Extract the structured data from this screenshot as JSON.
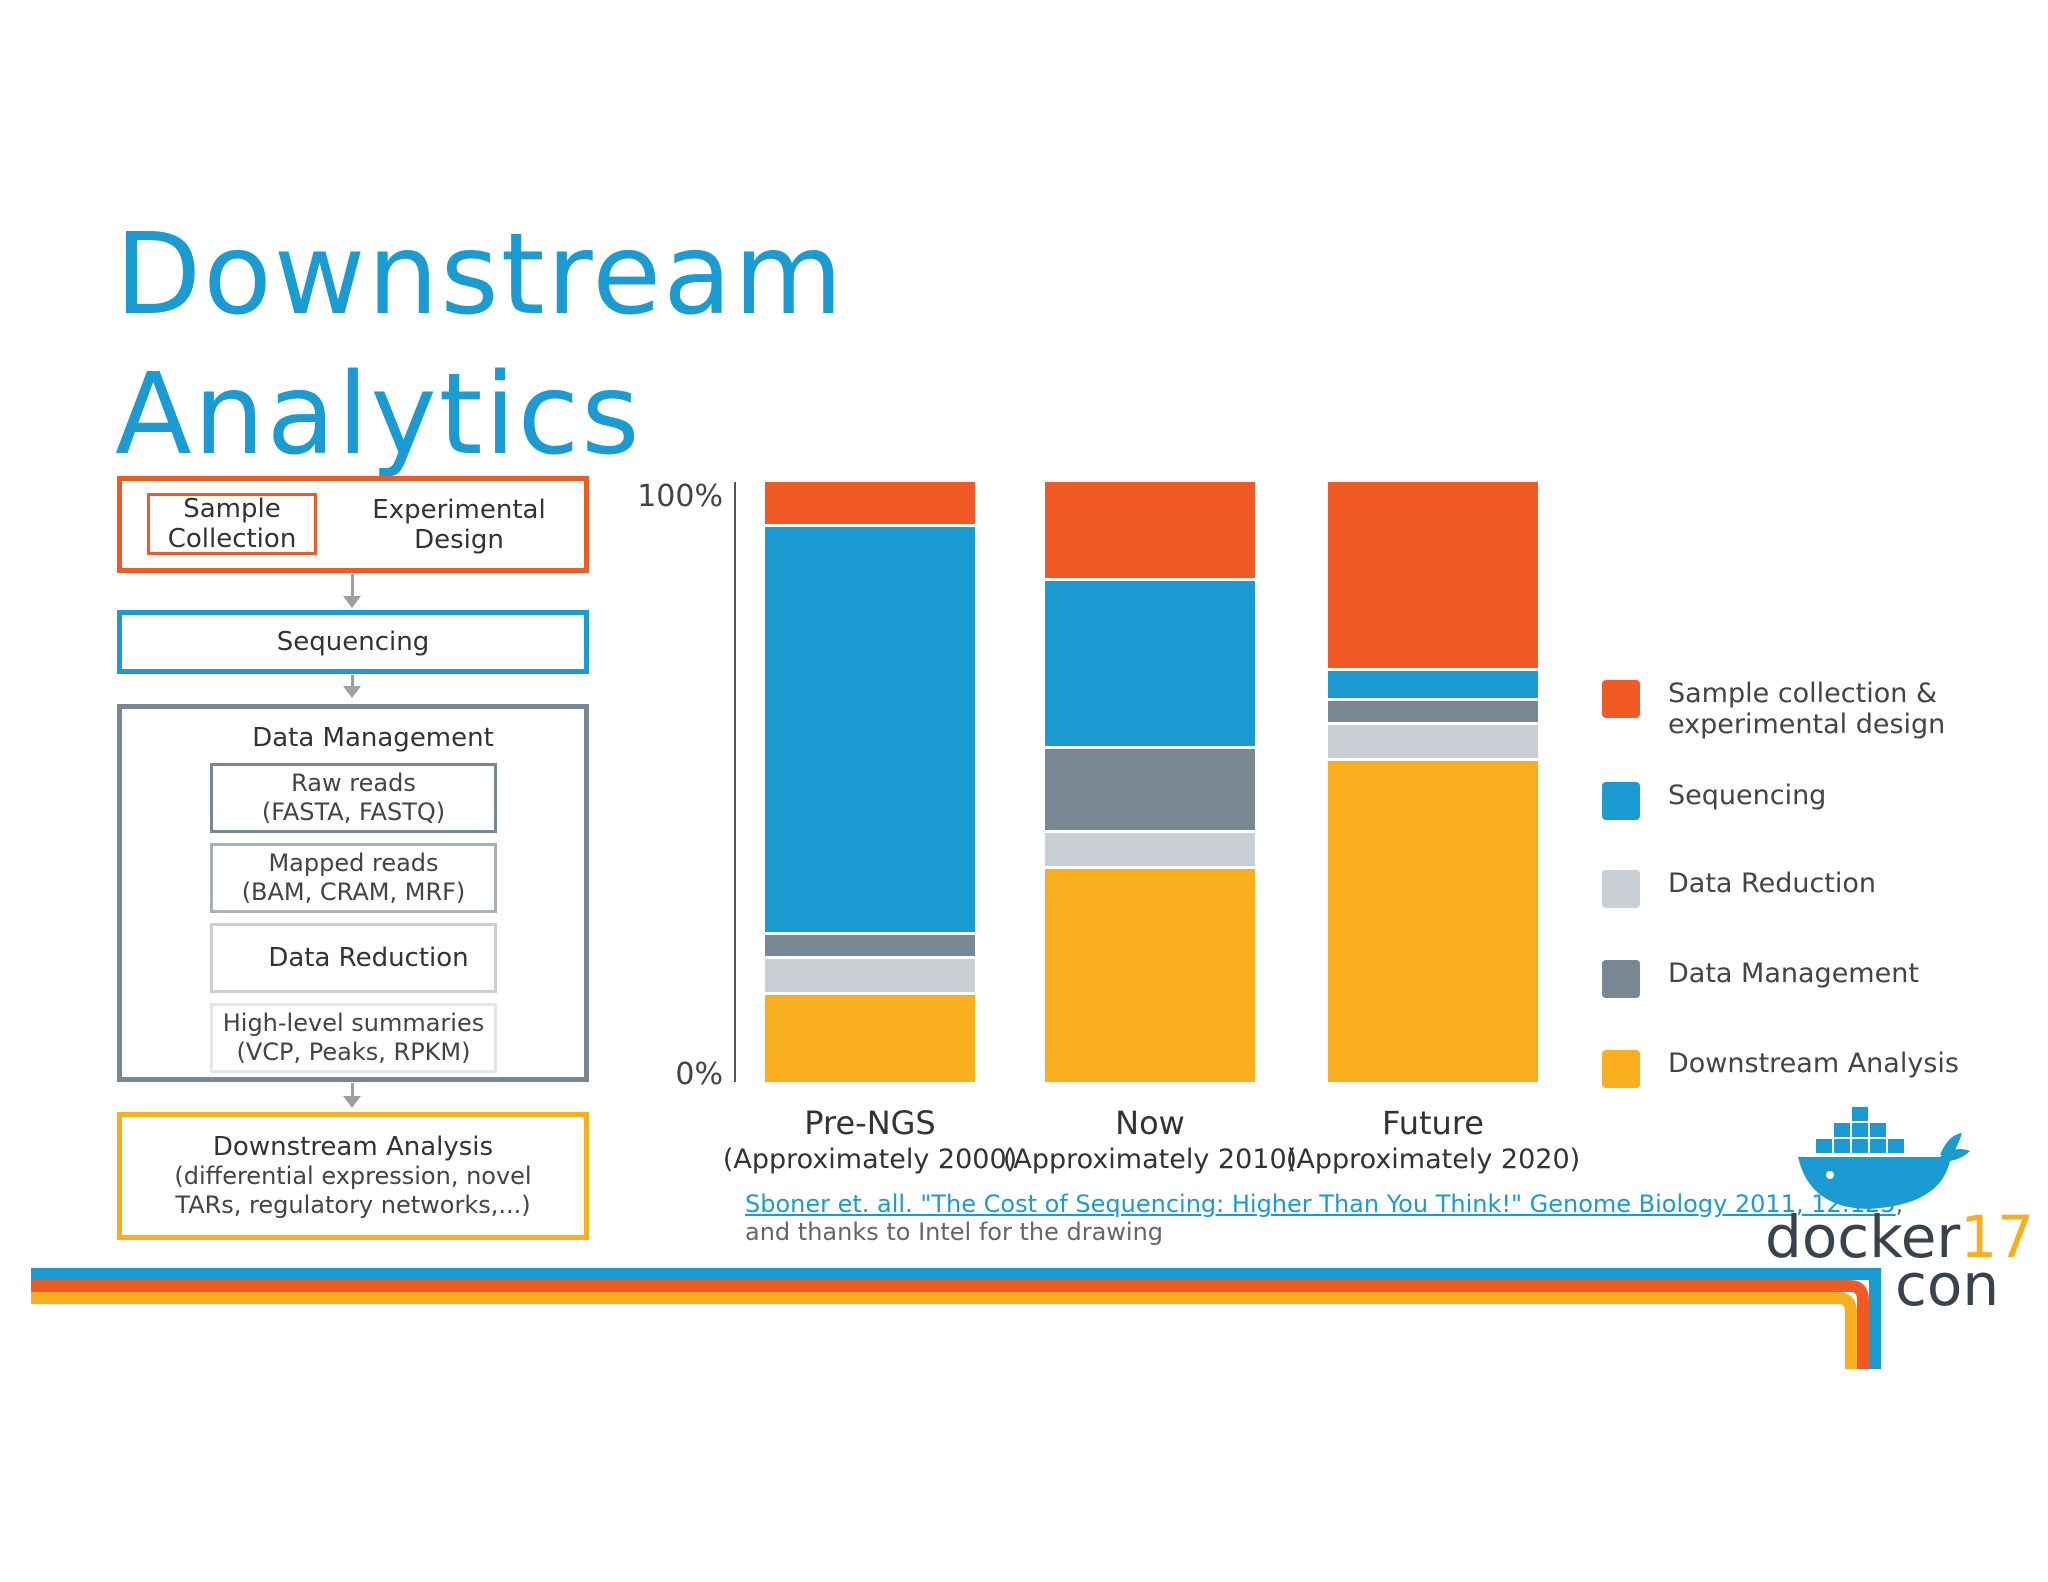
{
  "title": {
    "line1": "Downstream",
    "line2": "Analytics"
  },
  "flow": {
    "sample_collection": {
      "line1": "Sample",
      "line2": "Collection"
    },
    "experimental_design": {
      "line1": "Experimental",
      "line2": "Design"
    },
    "sequencing": "Sequencing",
    "data_management": "Data Management",
    "raw_reads": {
      "line1": "Raw reads",
      "line2": "(FASTA, FASTQ)"
    },
    "mapped_reads": {
      "line1": "Mapped reads",
      "line2": "(BAM, CRAM, MRF)"
    },
    "data_reduction": "Data Reduction",
    "summaries": {
      "line1": "High-level summaries",
      "line2": "(VCP, Peaks, RPKM)"
    },
    "downstream": {
      "line1": "Downstream Analysis",
      "line2": "(differential expression, novel",
      "line3": "TARs, regulatory networks,...)"
    }
  },
  "chart_data": {
    "type": "bar",
    "stacked": true,
    "title": "",
    "xlabel": "",
    "ylabel": "",
    "ylim": [
      0,
      100
    ],
    "y_tick_labels": [
      "0%",
      "100%"
    ],
    "categories": [
      {
        "name": "Pre-NGS",
        "sub": "(Approximately 2000)"
      },
      {
        "name": "Now",
        "sub": "(Approximately 2010)"
      },
      {
        "name": "Future",
        "sub": "(Approximately 2020)"
      }
    ],
    "series": [
      {
        "name": "Downstream Analysis",
        "color": "#f9ae1d",
        "values": [
          15,
          36,
          54
        ]
      },
      {
        "name": "Data Reduction",
        "color": "#c9cfd5",
        "values": [
          6,
          6,
          6
        ]
      },
      {
        "name": "Data Management",
        "color": "#778794",
        "values": [
          4,
          14,
          4
        ]
      },
      {
        "name": "Sequencing",
        "color": "#1a9bd2",
        "values": [
          68,
          28,
          5
        ]
      },
      {
        "name": "Sample collection & experimental design",
        "color": "#f15a24",
        "values": [
          7,
          16,
          31
        ]
      }
    ],
    "legend": {
      "placement": "right",
      "order": [
        "Sample collection & experimental design",
        "Sequencing",
        "Data Reduction",
        "Data Management",
        "Downstream Analysis"
      ]
    }
  },
  "citation": {
    "link_text": "Sboner et. all. \"The Cost of Sequencing: Higher Than You Think!\" Genome Biology 2011, 12:125",
    "trailing": ",",
    "thanks": "and thanks to Intel for the drawing"
  },
  "logo": {
    "word": "docker",
    "number": "17",
    "sub": "con"
  },
  "colors": {
    "orange": "#f15a24",
    "blue": "#1a9bd2",
    "gray_dark": "#778794",
    "gray_light": "#c9cfd5",
    "yellow": "#f9ae1d"
  }
}
